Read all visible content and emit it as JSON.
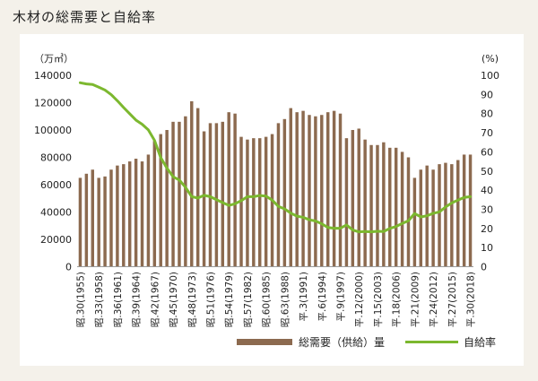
{
  "page": {
    "title": "木材の総需要と自給率"
  },
  "chart_data": {
    "type": "bar",
    "title": "木材の総需要と自給率",
    "y_left": {
      "unit": "（万㎥）",
      "ylim": [
        0,
        140000
      ],
      "ticks": [
        "0",
        "20000",
        "40000",
        "60000",
        "80000",
        "100000",
        "120000",
        "140000"
      ]
    },
    "y_right": {
      "unit": "(%)",
      "ylim": [
        0,
        100
      ],
      "ticks": [
        "0",
        "10",
        "20",
        "30",
        "40",
        "50",
        "60",
        "70",
        "80",
        "90",
        "100"
      ]
    },
    "x_years": [
      1955,
      1956,
      1957,
      1958,
      1959,
      1960,
      1961,
      1962,
      1963,
      1964,
      1965,
      1966,
      1967,
      1968,
      1969,
      1970,
      1971,
      1972,
      1973,
      1974,
      1975,
      1976,
      1977,
      1978,
      1979,
      1980,
      1981,
      1982,
      1983,
      1984,
      1985,
      1986,
      1987,
      1988,
      1989,
      1990,
      1991,
      1992,
      1993,
      1994,
      1995,
      1996,
      1997,
      1998,
      1999,
      2000,
      2001,
      2002,
      2003,
      2004,
      2005,
      2006,
      2007,
      2008,
      2009,
      2010,
      2011,
      2012,
      2013,
      2014,
      2015,
      2016,
      2017,
      2018
    ],
    "x_tick_labels": [
      "昭.30(1955)",
      "昭.33(1958)",
      "昭.36(1961)",
      "昭.39(1964)",
      "昭.42(1967)",
      "昭.45(1970)",
      "昭.48(1973)",
      "昭.51(1976)",
      "昭.54(1979)",
      "昭.57(1982)",
      "昭.60(1985)",
      "昭.63(1988)",
      "平.3(1991)",
      "平.6(1994)",
      "平.9(1997)",
      "平.12(2000)",
      "平.15(2003)",
      "平.18(2006)",
      "平.21(2009)",
      "平.24(2012)",
      "平.27(2015)",
      "平.30(2018)"
    ],
    "series": [
      {
        "name": "総需要（供給）量",
        "kind": "bar",
        "axis": "left",
        "color": "#8c6a4f",
        "values": [
          65000,
          68000,
          71000,
          65000,
          66000,
          71000,
          74000,
          75000,
          77000,
          79000,
          77000,
          82000,
          92000,
          97000,
          100000,
          106000,
          106000,
          110000,
          121000,
          116000,
          99000,
          105000,
          105000,
          106000,
          113000,
          112000,
          95000,
          93000,
          94000,
          94000,
          95000,
          97000,
          105000,
          108000,
          116000,
          113000,
          114000,
          111000,
          110000,
          111000,
          113000,
          114000,
          112000,
          94000,
          100000,
          101000,
          93000,
          89000,
          89000,
          91000,
          87000,
          87000,
          84000,
          80000,
          65000,
          71000,
          74000,
          71000,
          75000,
          76000,
          75000,
          78000,
          82000,
          82000
        ]
      },
      {
        "name": "自給率",
        "kind": "line",
        "axis": "right",
        "color": "#7cb82f",
        "values": [
          96.1,
          95.5,
          95.2,
          93.8,
          92.3,
          89.9,
          86.7,
          83.2,
          79.9,
          76.6,
          74.4,
          71.5,
          66.0,
          57.0,
          51.5,
          47.0,
          45.3,
          41.5,
          36.6,
          35.9,
          37.3,
          36.6,
          35.0,
          33.5,
          32.0,
          32.9,
          34.5,
          36.6,
          36.6,
          37.2,
          36.9,
          34.8,
          31.5,
          30.2,
          28.0,
          26.4,
          25.8,
          24.5,
          23.9,
          22.4,
          20.5,
          20.1,
          20.1,
          21.8,
          19.2,
          18.2,
          18.4,
          18.2,
          18.5,
          18.4,
          20.0,
          21.0,
          22.6,
          24.0,
          27.8,
          26.0,
          26.6,
          27.9,
          28.6,
          31.2,
          33.3,
          34.8,
          36.2,
          36.6
        ]
      }
    ],
    "legend_position": "bottom-right",
    "grid": false
  }
}
